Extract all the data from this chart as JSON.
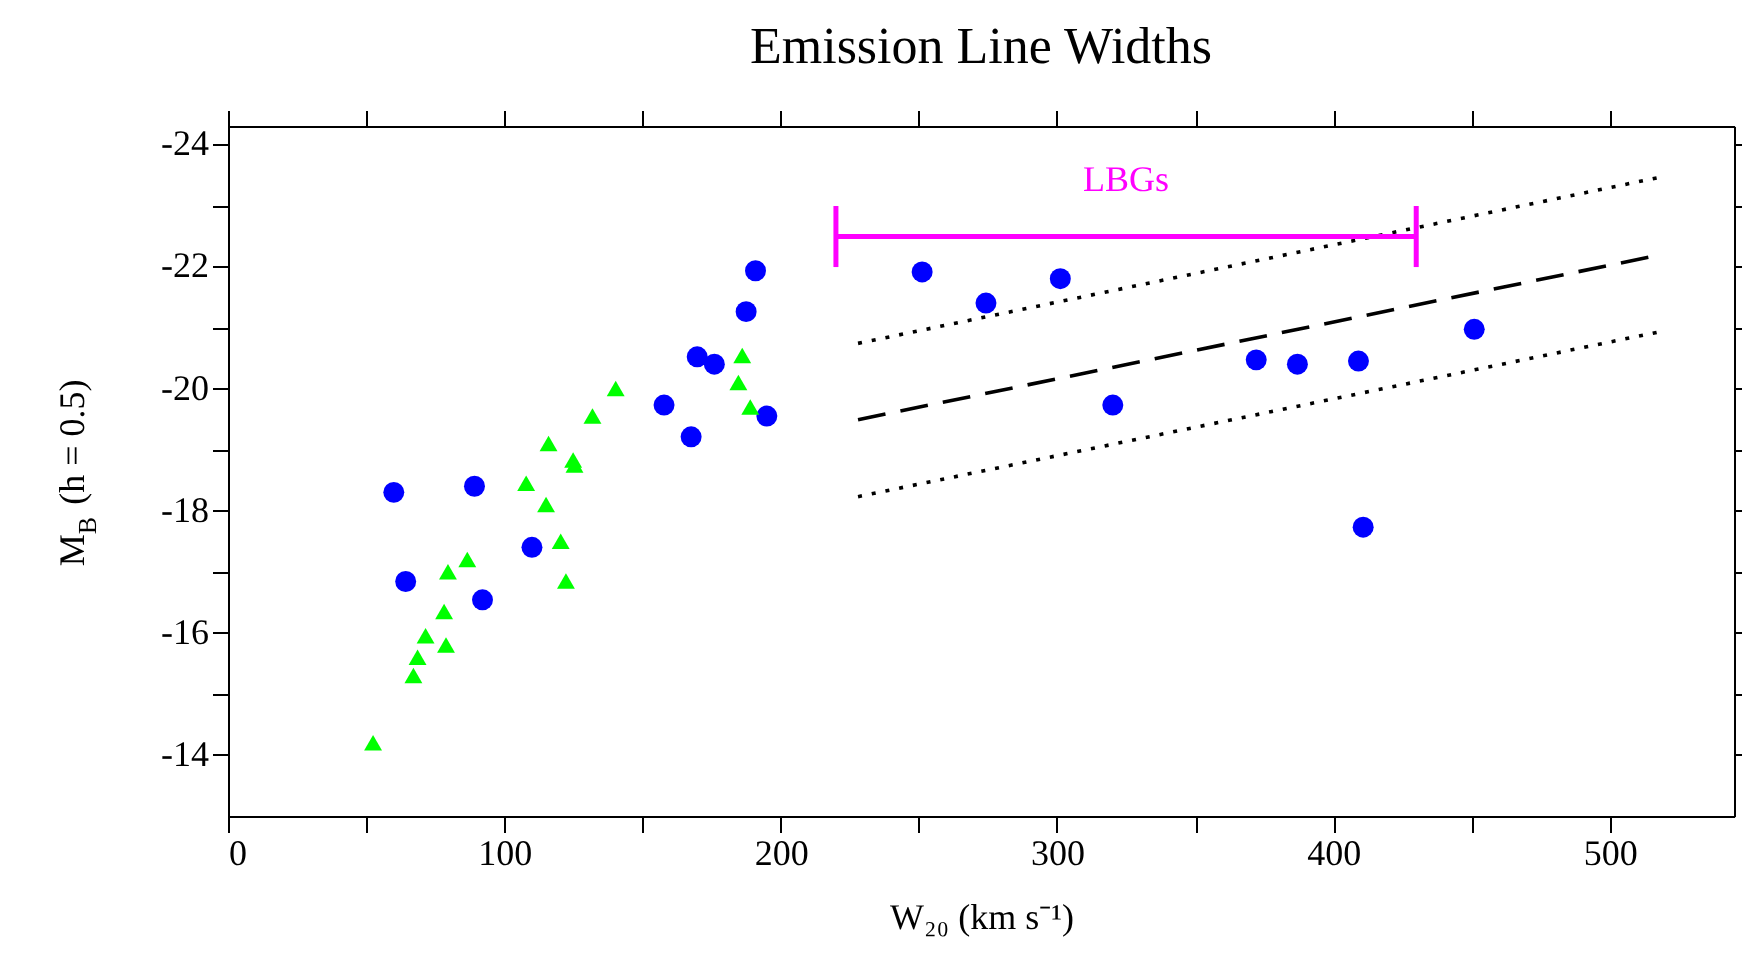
{
  "chart_data": {
    "type": "scatter",
    "title": "Emission Line Widths",
    "xlabel": "W₂₀ (km s⁻¹)",
    "ylabel": "M$_{B}$ (h = 0.5)",
    "xlim": [
      0,
      545
    ],
    "ylim": [
      -13,
      -24.3
    ],
    "xticks": [
      0,
      {
        "value": 50,
        "label": null
      },
      100,
      {
        "value": 150,
        "label": null
      },
      200,
      {
        "value": 250,
        "label": null
      },
      300,
      {
        "value": 350,
        "label": null
      },
      400,
      {
        "value": 450,
        "label": null
      },
      500
    ],
    "yticks": [
      -14,
      {
        "value": -15,
        "label": null
      },
      -16,
      {
        "value": -17,
        "label": null
      },
      -18,
      {
        "value": -19,
        "label": null
      },
      -20,
      {
        "value": -21,
        "label": null
      },
      -22,
      {
        "value": -23,
        "label": null
      },
      -24
    ],
    "grid": false,
    "series": [
      {
        "marker": "circle",
        "color": "#0000ff",
        "x": [
          60,
          64.3,
          89.2,
          92.1,
          110,
          157.8,
          167.6,
          169.8,
          176,
          187.5,
          190.9,
          195,
          251.2,
          274.3,
          301.2,
          320.2,
          372.1,
          387,
          409.1,
          410.8,
          451
        ],
        "values": [
          -18.3,
          -16.84,
          -18.4,
          -16.54,
          -17.4,
          -19.73,
          -19.21,
          -20.52,
          -20.4,
          -21.26,
          -21.93,
          -19.55,
          -21.91,
          -21.4,
          -21.8,
          -19.73,
          -20.47,
          -20.4,
          -20.45,
          -17.73,
          -20.97
        ]
      },
      {
        "marker": "triangle",
        "color": "#00ff00",
        "x": [
          52.5,
          67.1,
          68.6,
          71.5,
          78.2,
          78.9,
          79.6,
          86.6,
          107.9,
          115.1,
          116,
          120.4,
          122.3,
          124.9,
          125.4,
          131.9,
          140.3,
          184.7,
          186.1,
          189
        ],
        "values": [
          -14.2,
          -15.3,
          -15.6,
          -15.95,
          -16.35,
          -15.8,
          -17.0,
          -17.2,
          -18.45,
          -18.1,
          -19.1,
          -17.5,
          -16.85,
          -18.83,
          -18.75,
          -19.55,
          -20.0,
          -20.1,
          -20.54,
          -19.7
        ]
      },
      {
        "type": "line",
        "line_style": "dashed",
        "color": "#000000",
        "x": [
          228,
          514
        ],
        "values": [
          -19.49,
          -22.15
        ]
      },
      {
        "type": "line",
        "line_style": "dotted",
        "color": "#000000",
        "x": [
          228,
          517
        ],
        "values": [
          -20.74,
          -23.45
        ]
      },
      {
        "type": "line",
        "line_style": "dotted",
        "color": "#000000",
        "x": [
          228,
          517
        ],
        "values": [
          -18.23,
          -20.92
        ]
      },
      {
        "type": "line",
        "name": "LBGs",
        "color": "#ff00ff",
        "x": [
          220,
          430
        ],
        "values": [
          -22.49,
          -22.49
        ],
        "errors": [
          0.5,
          0.5
        ]
      }
    ]
  }
}
